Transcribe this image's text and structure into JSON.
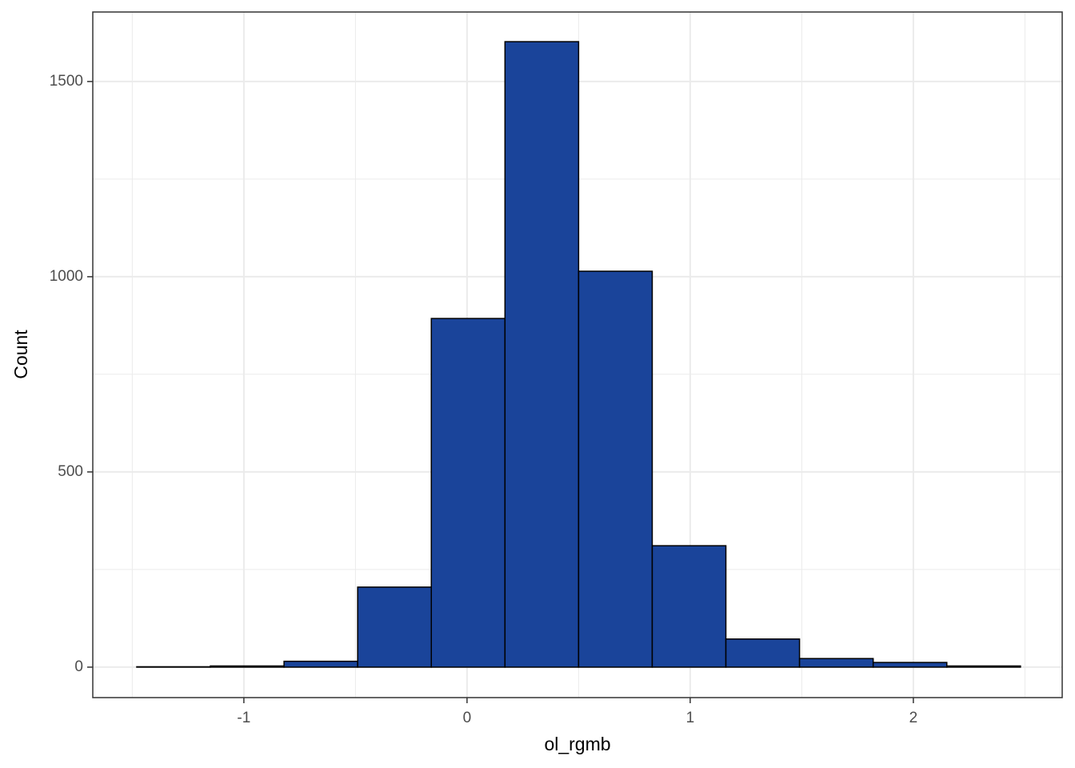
{
  "chart_data": {
    "type": "histogram",
    "xlabel": "ol_rgmb",
    "ylabel": "Count",
    "bins": [
      -1.48,
      -1.15,
      -0.82,
      -0.49,
      -0.16,
      0.17,
      0.5,
      0.83,
      1.16,
      1.49,
      1.82,
      2.15,
      2.48
    ],
    "values": [
      1,
      3,
      15,
      205,
      893,
      1602,
      1014,
      311,
      72,
      22,
      12,
      3
    ],
    "color": "#1a449a",
    "edgecolor": "#000000",
    "xlim": [
      -1.677,
      2.667
    ],
    "xticks": [
      -1,
      0,
      1,
      2
    ],
    "ylim": [
      -78,
      1678
    ],
    "yticks": [
      0,
      500,
      1000,
      1500
    ],
    "grid": true,
    "minor_grid": true
  }
}
